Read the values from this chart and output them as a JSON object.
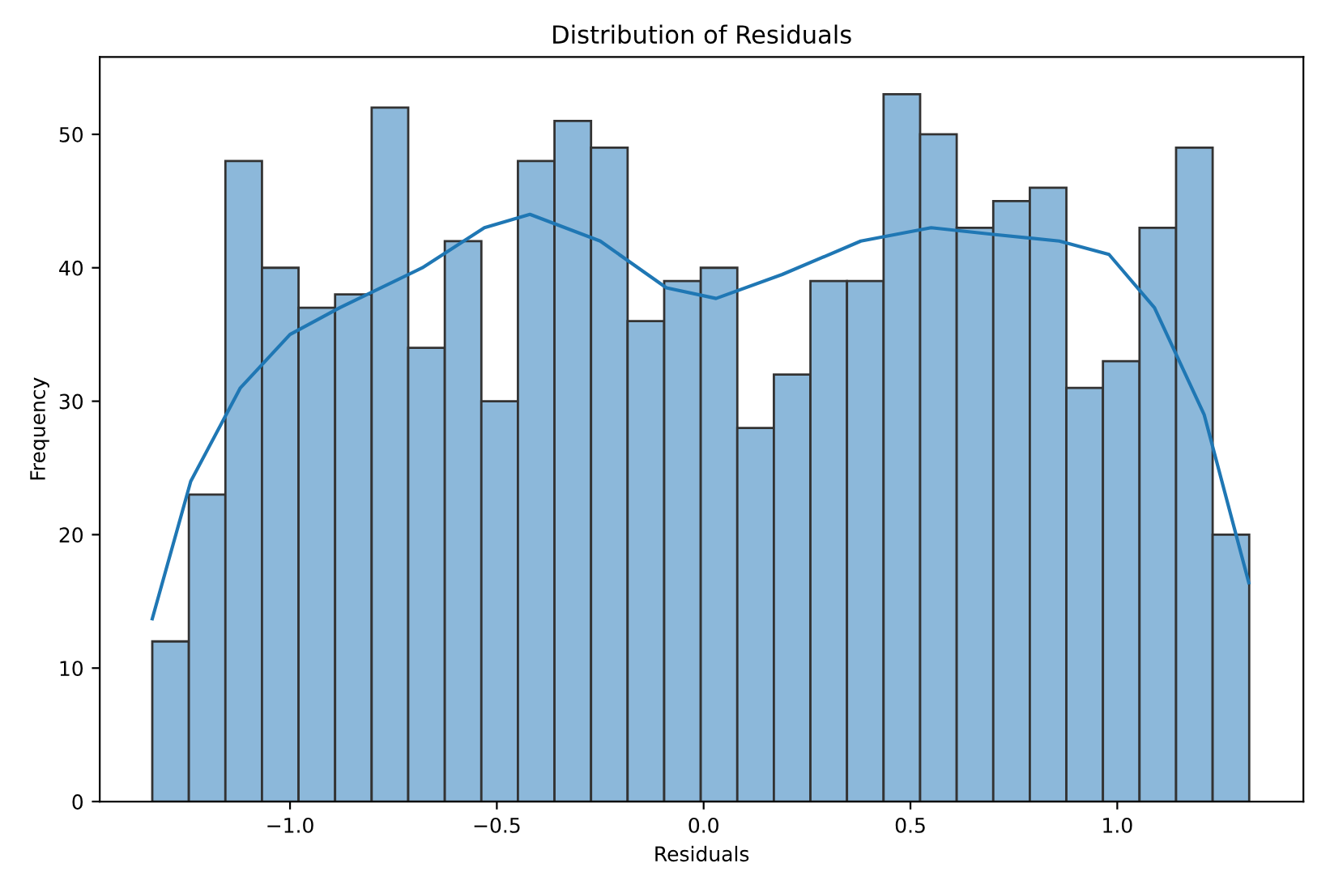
{
  "chart_data": {
    "type": "histogram",
    "title": "Distribution of Residuals",
    "xlabel": "Residuals",
    "ylabel": "Frequency",
    "bins": [
      -1.333,
      -1.2446,
      -1.1562,
      -1.0678,
      -0.9794,
      -0.891,
      -0.8026,
      -0.7142,
      -0.6258,
      -0.5374,
      -0.449,
      -0.3606,
      -0.2722,
      -0.1838,
      -0.0954,
      -0.007,
      0.0814,
      0.1698,
      0.2582,
      0.3466,
      0.435,
      0.5234,
      0.6118,
      0.7002,
      0.7886,
      0.877,
      0.9654,
      1.0538,
      1.1422,
      1.2306,
      1.319
    ],
    "values": [
      12,
      23,
      48,
      40,
      37,
      38,
      52,
      34,
      42,
      30,
      48,
      51,
      49,
      36,
      39,
      40,
      28,
      32,
      39,
      39,
      53,
      50,
      43,
      45,
      46,
      31,
      33,
      43,
      49,
      20
    ],
    "color": "#8cb8da",
    "series": [
      {
        "type": "line",
        "color": "#1f77b4",
        "x": [
          -1.333,
          -1.24,
          -1.12,
          -1.0,
          -0.88,
          -0.68,
          -0.53,
          -0.42,
          -0.25,
          -0.09,
          0.03,
          0.19,
          0.38,
          0.55,
          0.7,
          0.86,
          0.98,
          1.09,
          1.21,
          1.318
        ],
        "values": [
          13.7,
          24,
          31,
          35,
          37,
          40,
          43,
          44,
          42,
          38.5,
          37.7,
          39.5,
          42,
          43,
          42.5,
          42,
          41,
          37,
          29,
          16.4
        ]
      }
    ],
    "xlim": [
      -1.46,
      1.45
    ],
    "ylim": [
      0,
      55.8
    ],
    "xticks": [
      {
        "value": -1.0,
        "label": "−1.0"
      },
      {
        "value": -0.5,
        "label": "−0.5"
      },
      {
        "value": 0.0,
        "label": "0.0"
      },
      {
        "value": 0.5,
        "label": "0.5"
      },
      {
        "value": 1.0,
        "label": "1.0"
      }
    ],
    "yticks": [
      0,
      10,
      20,
      30,
      40,
      50
    ],
    "grid": false,
    "legend": false
  }
}
